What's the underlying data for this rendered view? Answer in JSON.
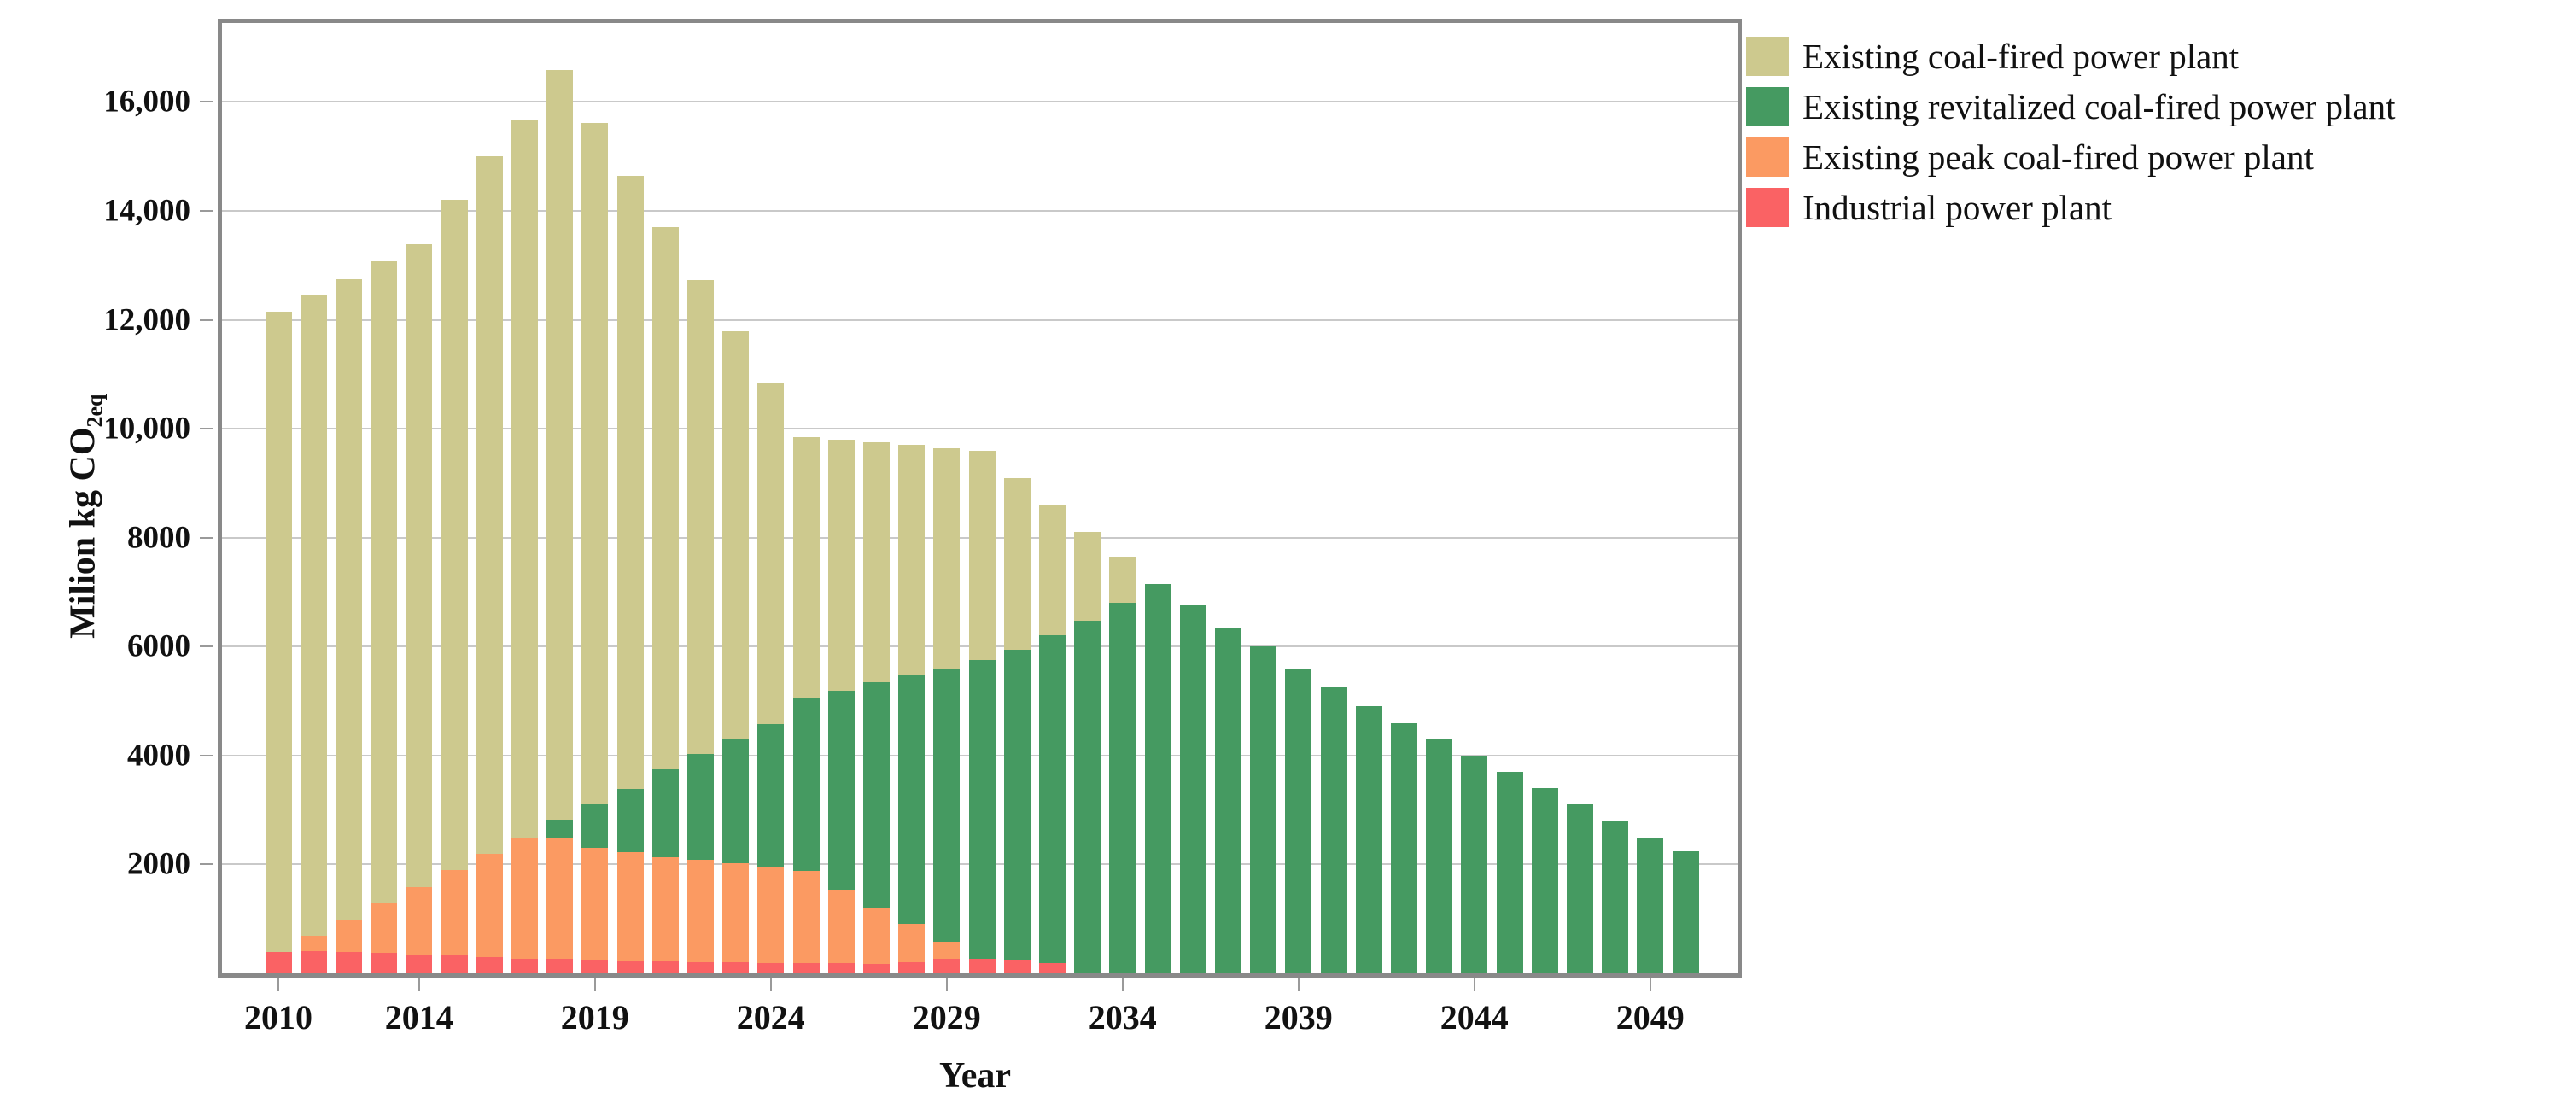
{
  "figure": {
    "x_axis": {
      "title": "Year",
      "tick_years": [
        "2010",
        "2014",
        "2019",
        "2024",
        "2029",
        "2034",
        "2039",
        "2044",
        "2049"
      ]
    },
    "y_axis": {
      "title_main": "Milion kg CO",
      "title_sub": "2eq",
      "tick_labels": [
        "2000",
        "4000",
        "6000",
        "8000",
        "10,000",
        "12,000",
        "14,000",
        "16,000"
      ],
      "tick_values": [
        2000,
        4000,
        6000,
        8000,
        10000,
        12000,
        14000,
        16000
      ]
    }
  },
  "chart_data": {
    "type": "bar",
    "stacked": true,
    "title": "",
    "xlabel": "Year",
    "ylabel": "Milion kg CO2eq",
    "ylim": [
      0,
      17450
    ],
    "grid": true,
    "legend_position": "top-right",
    "categories": [
      2010,
      2011,
      2012,
      2013,
      2014,
      2015,
      2016,
      2017,
      2018,
      2019,
      2020,
      2021,
      2022,
      2023,
      2024,
      2025,
      2026,
      2027,
      2028,
      2029,
      2030,
      2031,
      2032,
      2033,
      2034,
      2035,
      2036,
      2037,
      2038,
      2039,
      2040,
      2041,
      2042,
      2043,
      2044,
      2045,
      2046,
      2047,
      2048,
      2049,
      2050
    ],
    "series": [
      {
        "name": "Existing coal-fired power plant",
        "color": "#cdc98e",
        "stack_order": 3,
        "values": [
          11760,
          11760,
          11760,
          11800,
          11800,
          12300,
          12800,
          13190,
          13770,
          12510,
          11260,
          9970,
          8700,
          7500,
          6260,
          4800,
          4610,
          4410,
          4230,
          4040,
          3840,
          3160,
          2390,
          1630,
          840,
          0,
          0,
          0,
          0,
          0,
          0,
          0,
          0,
          0,
          0,
          0,
          0,
          0,
          0,
          0,
          0
        ]
      },
      {
        "name": "Existing revitalized coal-fired power plant",
        "color": "#459a61",
        "stack_order": 2,
        "values": [
          0,
          0,
          0,
          0,
          0,
          0,
          0,
          0,
          340,
          790,
          1170,
          1600,
          1950,
          2270,
          2640,
          3175,
          3655,
          4150,
          4570,
          5020,
          5490,
          5690,
          6025,
          6470,
          6810,
          7150,
          6750,
          6350,
          6000,
          5600,
          5250,
          4900,
          4600,
          4300,
          4000,
          3700,
          3400,
          3100,
          2800,
          2500,
          2250
        ]
      },
      {
        "name": "Existing peak coal-fired power plant",
        "color": "#fb9a62",
        "stack_order": 1,
        "values": [
          0,
          290,
          600,
          900,
          1240,
          1570,
          1900,
          2220,
          2220,
          2060,
          1980,
          1920,
          1870,
          1820,
          1745,
          1685,
          1350,
          1010,
          700,
          320,
          0,
          0,
          0,
          0,
          0,
          0,
          0,
          0,
          0,
          0,
          0,
          0,
          0,
          0,
          0,
          0,
          0,
          0,
          0,
          0,
          0
        ]
      },
      {
        "name": "Industrial power plant",
        "color": "#fa6264",
        "stack_order": 0,
        "values": [
          390,
          400,
          390,
          380,
          350,
          330,
          300,
          270,
          260,
          250,
          240,
          220,
          210,
          200,
          195,
          190,
          185,
          180,
          210,
          260,
          260,
          250,
          185,
          0,
          0,
          0,
          0,
          0,
          0,
          0,
          0,
          0,
          0,
          0,
          0,
          0,
          0,
          0,
          0,
          0,
          0
        ]
      }
    ],
    "totals": [
      12150,
      12450,
      12750,
      13080,
      13390,
      14200,
      15000,
      15680,
      16590,
      15610,
      14650,
      13710,
      12730,
      11790,
      10840,
      9850,
      9800,
      9750,
      9700,
      9640,
      9590,
      9100,
      8600,
      8100,
      7650,
      7150,
      6750,
      6350,
      6000,
      5600,
      5250,
      4900,
      4600,
      4300,
      4000,
      3700,
      3400,
      3100,
      2800,
      2500,
      2250
    ],
    "colors": {
      "gridline": "#c9c9c9",
      "plot_border": "#898989",
      "background": "#ffffff",
      "text": "#111111"
    }
  }
}
